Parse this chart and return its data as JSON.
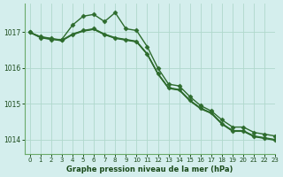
{
  "background_color": "#d4eeed",
  "grid_color": "#b0d8cc",
  "line_color": "#2d6b2d",
  "marker_color": "#2d6b2d",
  "xlabel": "Graphe pression niveau de la mer (hPa)",
  "ylim": [
    1013.6,
    1017.8
  ],
  "xlim": [
    -0.5,
    23
  ],
  "yticks": [
    1014,
    1015,
    1016,
    1017
  ],
  "xticks": [
    0,
    1,
    2,
    3,
    4,
    5,
    6,
    7,
    8,
    9,
    10,
    11,
    12,
    13,
    14,
    15,
    16,
    17,
    18,
    19,
    20,
    21,
    22,
    23
  ],
  "series": [
    [
      1017.0,
      1016.85,
      1016.8,
      1016.8,
      1017.2,
      1017.45,
      1017.5,
      1017.3,
      1017.55,
      1017.1,
      1017.05,
      1016.6,
      1016.0,
      1015.55,
      1015.5,
      1015.2,
      1014.95,
      1014.8,
      1014.55,
      1014.35,
      1014.35,
      1014.2,
      1014.15,
      1014.1
    ],
    [
      1017.0,
      1016.88,
      1016.83,
      1016.78,
      1016.95,
      1017.05,
      1017.1,
      1016.95,
      1016.85,
      1016.8,
      1016.75,
      1016.4,
      1015.85,
      1015.45,
      1015.4,
      1015.1,
      1014.88,
      1014.75,
      1014.45,
      1014.25,
      1014.25,
      1014.1,
      1014.05,
      1014.0
    ],
    [
      1017.0,
      1016.86,
      1016.81,
      1016.76,
      1016.93,
      1017.03,
      1017.08,
      1016.93,
      1016.83,
      1016.78,
      1016.73,
      1016.38,
      1015.83,
      1015.43,
      1015.38,
      1015.08,
      1014.86,
      1014.73,
      1014.43,
      1014.23,
      1014.23,
      1014.08,
      1014.03,
      1013.98
    ],
    [
      1017.0,
      1016.87,
      1016.82,
      1016.77,
      1016.94,
      1017.04,
      1017.09,
      1016.94,
      1016.84,
      1016.79,
      1016.74,
      1016.39,
      1015.84,
      1015.44,
      1015.39,
      1015.09,
      1014.87,
      1014.74,
      1014.44,
      1014.24,
      1014.24,
      1014.09,
      1014.04,
      1013.99
    ]
  ],
  "series_configs": [
    {
      "markers": true,
      "lw": 1.0
    },
    {
      "markers": true,
      "lw": 1.0
    },
    {
      "markers": false,
      "lw": 0.9
    },
    {
      "markers": false,
      "lw": 0.9
    }
  ],
  "marker": "D",
  "marker_size": 2.5
}
